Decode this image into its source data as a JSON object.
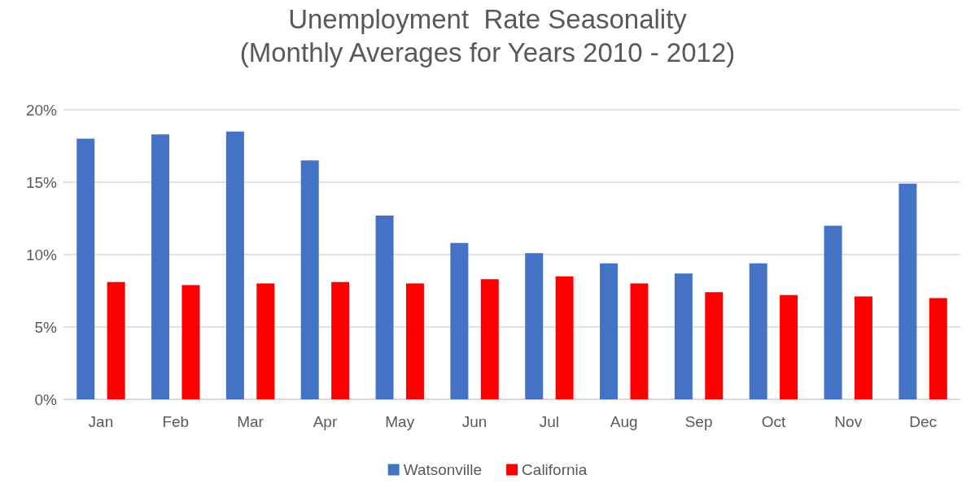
{
  "chart_data": {
    "type": "bar",
    "title": "Unemployment  Rate Seasonality",
    "subtitle": "(Monthly Averages for Years 2010 - 2012)",
    "categories": [
      "Jan",
      "Feb",
      "Mar",
      "Apr",
      "May",
      "Jun",
      "Jul",
      "Aug",
      "Sep",
      "Oct",
      "Nov",
      "Dec"
    ],
    "series": [
      {
        "name": "Watsonville",
        "color": "#4472c4",
        "values": [
          18.0,
          18.3,
          18.5,
          16.5,
          12.7,
          10.8,
          10.1,
          9.4,
          8.7,
          9.4,
          12.0,
          14.9
        ]
      },
      {
        "name": "California",
        "color": "#ff0000",
        "values": [
          8.1,
          7.9,
          8.0,
          8.1,
          8.0,
          8.3,
          8.5,
          8.0,
          7.4,
          7.2,
          7.1,
          7.0
        ]
      }
    ],
    "ylim": [
      0,
      20
    ],
    "yticks": [
      {
        "value": 0,
        "label": "0%"
      },
      {
        "value": 5,
        "label": "5%"
      },
      {
        "value": 10,
        "label": "10%"
      },
      {
        "value": 15,
        "label": "15%"
      },
      {
        "value": 20,
        "label": "20%"
      }
    ],
    "grid": "y",
    "legend": "bottom"
  }
}
